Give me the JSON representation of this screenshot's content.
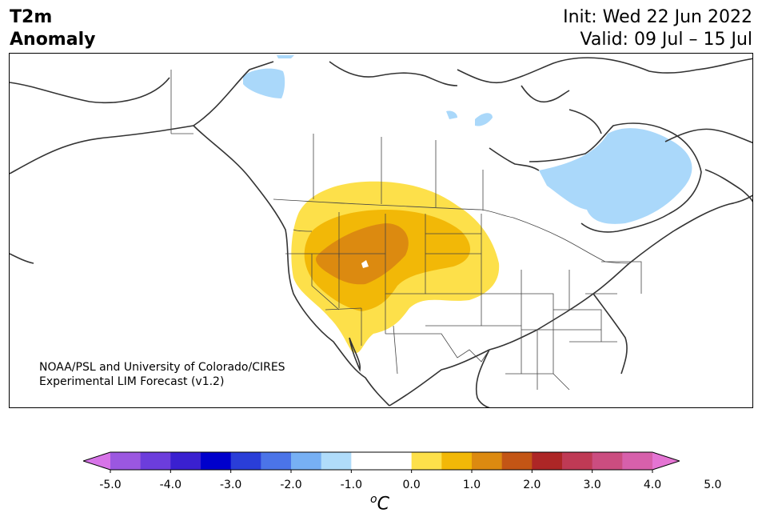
{
  "header": {
    "variable": "T2m",
    "subtitle": "Anomaly",
    "init": "Init: Wed 22 Jun 2022",
    "valid": "Valid: 09 Jul – 15 Jul"
  },
  "credit": {
    "line1": "NOAA/PSL and University of Colorado/CIRES",
    "line2": "Experimental LIM Forecast (v1.2)"
  },
  "colorbar": {
    "colors": [
      "#d774e8",
      "#9b57e0",
      "#6c3ddc",
      "#3a20d0",
      "#0000cc",
      "#2a3ed8",
      "#4b74e8",
      "#77b0f4",
      "#b0dcfa",
      "#ffffff",
      "#ffffff",
      "#fde04a",
      "#f2b807",
      "#dc8a10",
      "#c35515",
      "#ad2626",
      "#bf3a55",
      "#cb4d80",
      "#d760ab",
      "#e474d3"
    ],
    "ticks": [
      "-5.0",
      "-4.0",
      "-3.0",
      "-2.0",
      "-1.0",
      "0.0",
      "1.0",
      "2.0",
      "3.0",
      "4.0",
      "5.0"
    ],
    "unit_sup": "o",
    "unit": "C"
  },
  "legend_colors": {
    "light_blue": "#aad8fa",
    "yellow": "#fde04a",
    "gold": "#f2b807",
    "orange": "#dc8a10"
  }
}
